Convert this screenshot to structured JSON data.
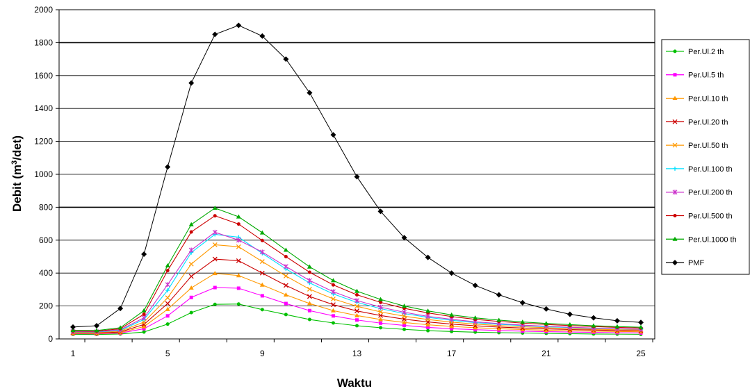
{
  "chart_data": {
    "type": "line",
    "title": "",
    "xlabel": "Waktu",
    "ylabel": {
      "prefix": "Debit (m",
      "sup": "3",
      "suffix": "/det)"
    },
    "x": [
      1,
      2,
      3,
      4,
      5,
      6,
      7,
      8,
      9,
      10,
      11,
      12,
      13,
      14,
      15,
      16,
      17,
      18,
      19,
      20,
      21,
      22,
      23,
      24,
      25
    ],
    "x_ticks": [
      1,
      5,
      9,
      13,
      17,
      21,
      25
    ],
    "ylim": [
      0,
      2000
    ],
    "y_ticks": [
      0,
      200,
      400,
      600,
      800,
      1000,
      1200,
      1400,
      1600,
      1800,
      2000
    ],
    "grid": "horizontal",
    "legend_position": "right",
    "series": [
      {
        "name": "Per.Ul.2 th",
        "color": "#00c000",
        "marker": "dot",
        "values": [
          28,
          27,
          30,
          42,
          90,
          160,
          210,
          212,
          178,
          148,
          118,
          97,
          80,
          68,
          58,
          50,
          45,
          41,
          38,
          36,
          34,
          32,
          30,
          29,
          28
        ]
      },
      {
        "name": "Per.Ul.5 th",
        "color": "#ff00ff",
        "marker": "square",
        "values": [
          32,
          31,
          35,
          62,
          140,
          252,
          312,
          308,
          262,
          215,
          172,
          140,
          115,
          96,
          82,
          70,
          62,
          56,
          51,
          47,
          44,
          42,
          40,
          38,
          36
        ]
      },
      {
        "name": "Per.Ul.10 th",
        "color": "#ff9900",
        "marker": "triangle",
        "values": [
          34,
          33,
          38,
          75,
          180,
          310,
          398,
          385,
          328,
          268,
          215,
          172,
          142,
          118,
          100,
          86,
          76,
          68,
          62,
          57,
          53,
          50,
          47,
          45,
          43
        ]
      },
      {
        "name": "Per.Ul.20 th",
        "color": "#cc0000",
        "marker": "x",
        "values": [
          37,
          36,
          42,
          88,
          215,
          380,
          485,
          475,
          400,
          325,
          258,
          208,
          170,
          142,
          120,
          103,
          90,
          80,
          72,
          66,
          61,
          57,
          54,
          51,
          49
        ]
      },
      {
        "name": "Per.Ul.50 th",
        "color": "#ff9900",
        "marker": "x",
        "values": [
          40,
          39,
          47,
          102,
          250,
          455,
          572,
          560,
          470,
          382,
          302,
          243,
          198,
          164,
          138,
          118,
          102,
          90,
          81,
          74,
          68,
          63,
          59,
          56,
          54
        ]
      },
      {
        "name": "Per.Ul.100 th",
        "color": "#00e0ff",
        "marker": "plus",
        "values": [
          43,
          42,
          52,
          118,
          295,
          525,
          635,
          618,
          520,
          425,
          340,
          273,
          222,
          184,
          154,
          131,
          113,
          99,
          89,
          81,
          74,
          69,
          64,
          61,
          58
        ]
      },
      {
        "name": "Per.Ul.200 th",
        "color": "#cc33cc",
        "marker": "star",
        "values": [
          45,
          44,
          56,
          128,
          330,
          540,
          648,
          600,
          528,
          440,
          355,
          287,
          233,
          193,
          162,
          137,
          119,
          104,
          93,
          84,
          77,
          71,
          66,
          62,
          59
        ]
      },
      {
        "name": "Per.Ul.500 th",
        "color": "#cc0000",
        "marker": "dot",
        "values": [
          48,
          47,
          62,
          150,
          415,
          650,
          748,
          698,
          598,
          500,
          405,
          328,
          268,
          222,
          186,
          158,
          136,
          119,
          106,
          96,
          88,
          81,
          75,
          70,
          66
        ]
      },
      {
        "name": "Per.Ul.1000 th",
        "color": "#00aa00",
        "marker": "triangle",
        "values": [
          52,
          51,
          68,
          172,
          445,
          695,
          795,
          742,
          645,
          540,
          438,
          355,
          290,
          240,
          200,
          170,
          146,
          128,
          114,
          103,
          94,
          87,
          80,
          75,
          71
        ]
      },
      {
        "name": "PMF",
        "color": "#000000",
        "marker": "diamond",
        "values": [
          72,
          80,
          185,
          515,
          1045,
          1555,
          1850,
          1905,
          1840,
          1700,
          1495,
          1240,
          985,
          775,
          615,
          495,
          400,
          325,
          268,
          220,
          182,
          150,
          128,
          110,
          100
        ]
      }
    ]
  }
}
